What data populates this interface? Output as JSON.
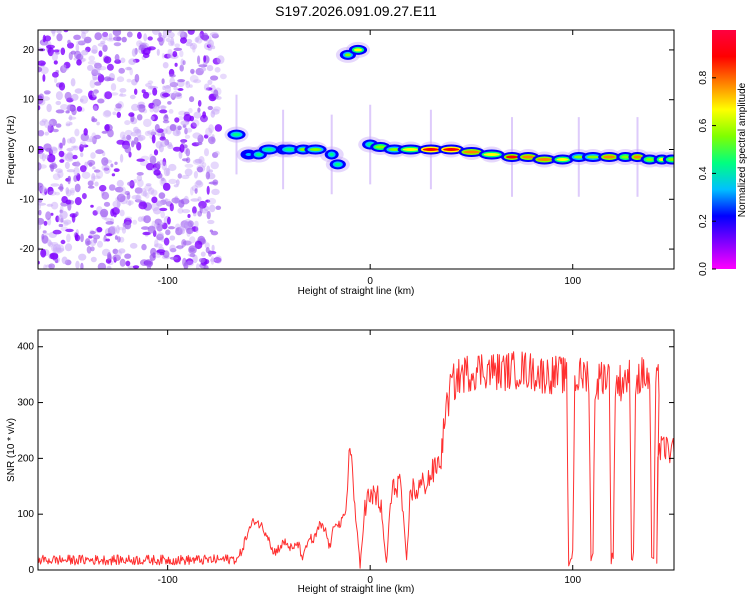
{
  "chart_data": [
    {
      "type": "heatmap",
      "title": "S197.2026.091.09.27.E11",
      "xlabel": "Height of straight line (km)",
      "ylabel": "Frequency (Hz)",
      "xlim": [
        -164,
        150
      ],
      "ylim": [
        -24,
        24
      ],
      "xticks": [
        -100,
        0,
        100
      ],
      "yticks": [
        -20,
        -10,
        0,
        10,
        20
      ],
      "colorbar": {
        "label": "Normalized spectral amplitude",
        "range": [
          0.0,
          1.0
        ],
        "ticks": [
          "0.0",
          "0.2",
          "0.4",
          "0.6",
          "0.8"
        ],
        "tick_values": [
          0.0,
          0.2,
          0.4,
          0.6,
          0.8
        ],
        "colormap": [
          "#ff00ff",
          "#8000ff",
          "#0000ff",
          "#00c0ff",
          "#00ff80",
          "#80ff00",
          "#ffff00",
          "#ff8000",
          "#ff0000",
          "#ff0040"
        ]
      },
      "noise_region": {
        "x": [
          -164,
          -78
        ],
        "amplitude": 0.3
      },
      "ridge": [
        {
          "x": -66,
          "f": 3,
          "a": 0.45
        },
        {
          "x": -60,
          "f": -1,
          "a": 0.35
        },
        {
          "x": -55,
          "f": -1,
          "a": 0.4
        },
        {
          "x": -50,
          "f": 0,
          "a": 0.4
        },
        {
          "x": -43,
          "f": 0,
          "a": 0.45
        },
        {
          "x": -40,
          "f": 0,
          "a": 0.4
        },
        {
          "x": -33,
          "f": 0,
          "a": 0.5
        },
        {
          "x": -27,
          "f": 0,
          "a": 0.55
        },
        {
          "x": -19,
          "f": -1,
          "a": 0.45
        },
        {
          "x": -16,
          "f": -3,
          "a": 0.45
        },
        {
          "x": -11,
          "f": 19,
          "a": 0.55
        },
        {
          "x": -6,
          "f": 20,
          "a": 0.65
        },
        {
          "x": 0,
          "f": 1,
          "a": 0.4
        },
        {
          "x": 5,
          "f": 0.5,
          "a": 0.6
        },
        {
          "x": 12,
          "f": 0,
          "a": 0.55
        },
        {
          "x": 20,
          "f": 0,
          "a": 0.7
        },
        {
          "x": 30,
          "f": 0,
          "a": 0.9
        },
        {
          "x": 40,
          "f": 0,
          "a": 0.9
        },
        {
          "x": 50,
          "f": -0.5,
          "a": 0.8
        },
        {
          "x": 60,
          "f": -1,
          "a": 0.7
        },
        {
          "x": 70,
          "f": -1.5,
          "a": 0.85
        },
        {
          "x": 78,
          "f": -1.5,
          "a": 0.75
        },
        {
          "x": 86,
          "f": -2,
          "a": 0.8
        },
        {
          "x": 95,
          "f": -2,
          "a": 0.7
        },
        {
          "x": 103,
          "f": -1.5,
          "a": 0.55
        },
        {
          "x": 110,
          "f": -1.5,
          "a": 0.5
        },
        {
          "x": 118,
          "f": -1.5,
          "a": 0.75
        },
        {
          "x": 126,
          "f": -1.5,
          "a": 0.6
        },
        {
          "x": 132,
          "f": -1.5,
          "a": 0.8
        },
        {
          "x": 138,
          "f": -2,
          "a": 0.6
        },
        {
          "x": 144,
          "f": -2,
          "a": 0.7
        },
        {
          "x": 149,
          "f": -2,
          "a": 0.6
        }
      ]
    },
    {
      "type": "line",
      "xlabel": "Height of straight line (km)",
      "ylabel": "SNR (10 * v/v)",
      "xlim": [
        -164,
        150
      ],
      "ylim": [
        0,
        430
      ],
      "xticks": [
        -100,
        0,
        100
      ],
      "yticks": [
        0,
        100,
        200,
        300,
        400
      ],
      "color": "#ff3030",
      "series": [
        {
          "name": "SNR",
          "x": [
            -164,
            -140,
            -120,
            -100,
            -80,
            -65,
            -60,
            -57,
            -54,
            -50,
            -48,
            -45,
            -42,
            -38,
            -36,
            -33,
            -30,
            -28,
            -25,
            -22,
            -20,
            -17,
            -15,
            -12,
            -10,
            -8,
            -5,
            -3,
            -1,
            0,
            2,
            5,
            8,
            10,
            12,
            15,
            18,
            20,
            22,
            25,
            28,
            30,
            32,
            35,
            37,
            40,
            45,
            55,
            65,
            75,
            85,
            90,
            95,
            97,
            98,
            99,
            100,
            101,
            105,
            108,
            109,
            110,
            111,
            115,
            118,
            119,
            120,
            121,
            125,
            128,
            129,
            130,
            131,
            135,
            138,
            139,
            140,
            141,
            143,
            141.5,
            142,
            145,
            150
          ],
          "y": [
            18,
            18,
            18,
            18,
            18,
            20,
            70,
            90,
            80,
            60,
            30,
            40,
            50,
            35,
            50,
            20,
            60,
            50,
            80,
            70,
            40,
            90,
            80,
            100,
            240,
            130,
            5,
            100,
            130,
            120,
            140,
            120,
            10,
            120,
            150,
            160,
            10,
            150,
            140,
            150,
            160,
            170,
            180,
            200,
            280,
            330,
            350,
            360,
            355,
            360,
            350,
            350,
            350,
            340,
            10,
            20,
            30,
            340,
            350,
            350,
            20,
            25,
            330,
            350,
            350,
            20,
            25,
            330,
            340,
            350,
            20,
            25,
            340,
            350,
            340,
            20,
            25,
            330,
            340,
            20,
            210,
            220,
            210
          ]
        }
      ]
    }
  ]
}
